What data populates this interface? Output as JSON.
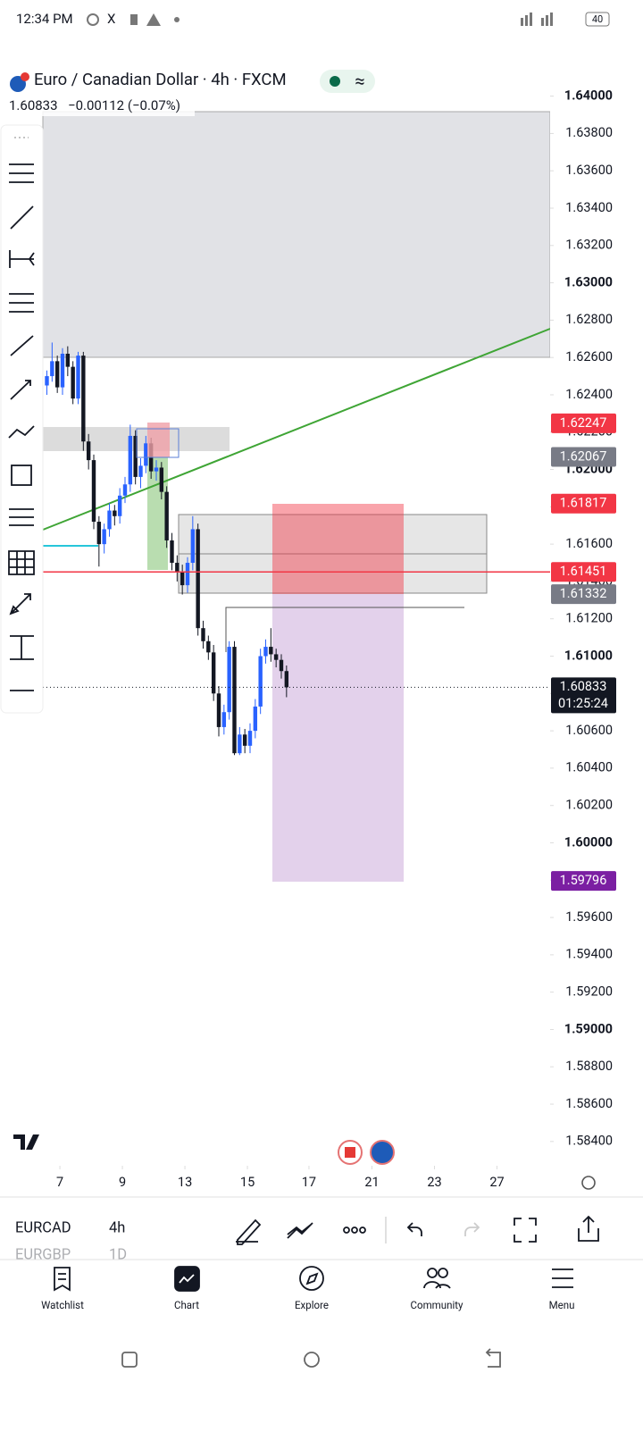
{
  "status_bar": {
    "time": "12:34 PM",
    "battery": "40"
  },
  "chart_data": {
    "type": "candlestick",
    "title": "Euro / Canadian Dollar · 4h · FXCM",
    "last": "1.60833",
    "change": "−0.00112 (−0.07%)",
    "up_color": "#2962ff",
    "down_color": "#131722",
    "x": [
      9,
      10,
      11,
      12,
      13,
      14,
      15,
      16,
      17,
      18,
      19,
      20,
      21,
      22,
      23,
      24,
      25,
      26,
      27,
      28,
      29,
      30,
      31,
      32,
      33,
      34,
      35,
      36,
      37,
      38,
      39,
      40,
      41,
      42,
      43,
      44,
      45,
      46,
      47,
      48,
      49,
      50,
      51,
      52,
      53,
      54,
      55
    ],
    "open": [
      1.6245,
      1.625,
      1.6258,
      1.6244,
      1.6262,
      1.6255,
      1.6238,
      1.6261,
      1.6215,
      1.6205,
      1.6172,
      1.616,
      1.6168,
      1.6178,
      1.6175,
      1.6186,
      1.6192,
      1.6218,
      1.6196,
      1.6202,
      1.6214,
      1.6199,
      1.6201,
      1.6188,
      1.6162,
      1.615,
      1.6145,
      1.6138,
      1.615,
      1.6168,
      1.6115,
      1.6108,
      1.6102,
      1.608,
      1.6062,
      1.607,
      1.6105,
      1.6048,
      1.6058,
      1.6052,
      1.606,
      1.6073,
      1.61,
      1.6105,
      1.6101,
      1.6098,
      1.6092
    ],
    "high": [
      1.6253,
      1.6268,
      1.6261,
      1.6265,
      1.6266,
      1.6258,
      1.6263,
      1.6263,
      1.6219,
      1.6208,
      1.6175,
      1.6171,
      1.6182,
      1.6181,
      1.619,
      1.6196,
      1.6224,
      1.6221,
      1.6206,
      1.6218,
      1.6217,
      1.6205,
      1.6204,
      1.6191,
      1.6166,
      1.6154,
      1.6149,
      1.6153,
      1.6175,
      1.6171,
      1.6119,
      1.6111,
      1.6106,
      1.6084,
      1.6074,
      1.6108,
      1.6108,
      1.6062,
      1.6061,
      1.6064,
      1.6077,
      1.6104,
      1.6109,
      1.6115,
      1.6104,
      1.6101,
      1.6095
    ],
    "low": [
      1.624,
      1.6247,
      1.6241,
      1.624,
      1.625,
      1.6235,
      1.6235,
      1.621,
      1.62,
      1.6168,
      1.6148,
      1.6155,
      1.6164,
      1.617,
      1.6171,
      1.6182,
      1.6188,
      1.6192,
      1.619,
      1.6198,
      1.6195,
      1.6194,
      1.6184,
      1.6158,
      1.6146,
      1.614,
      1.6133,
      1.6134,
      1.6146,
      1.6111,
      1.6104,
      1.6098,
      1.6076,
      1.6057,
      1.6058,
      1.6066,
      1.6047,
      1.6047,
      1.6048,
      1.6048,
      1.6056,
      1.6069,
      1.6096,
      1.6097,
      1.6094,
      1.6088,
      1.6078
    ],
    "close": [
      1.625,
      1.6258,
      1.6244,
      1.6262,
      1.6255,
      1.6238,
      1.6261,
      1.6215,
      1.6205,
      1.6172,
      1.616,
      1.6168,
      1.6178,
      1.6175,
      1.6186,
      1.6192,
      1.6218,
      1.6196,
      1.6202,
      1.6214,
      1.6199,
      1.6201,
      1.6188,
      1.6162,
      1.615,
      1.6145,
      1.6138,
      1.615,
      1.6168,
      1.6115,
      1.6108,
      1.6102,
      1.608,
      1.6062,
      1.607,
      1.6105,
      1.6048,
      1.6058,
      1.6052,
      1.606,
      1.6073,
      1.61,
      1.6105,
      1.6101,
      1.6098,
      1.6092,
      1.60833
    ],
    "xlim": [
      0,
      105.6
    ],
    "ylim": [
      1.5827,
      1.6418
    ],
    "xticks": [
      {
        "value": 11.5,
        "label": "7"
      },
      {
        "value": 23.5,
        "label": "9"
      },
      {
        "value": 35.5,
        "label": "13"
      },
      {
        "value": 47.5,
        "label": "15"
      },
      {
        "value": 59.3,
        "label": "17"
      },
      {
        "value": 71.4,
        "label": "21"
      },
      {
        "value": 83.4,
        "label": "23"
      },
      {
        "value": 95.4,
        "label": "27"
      }
    ],
    "yticks": [
      {
        "value": 1.64,
        "label": "1.64000"
      },
      {
        "value": 1.638,
        "label": "1.63800"
      },
      {
        "value": 1.636,
        "label": "1.63600"
      },
      {
        "value": 1.634,
        "label": "1.63400"
      },
      {
        "value": 1.632,
        "label": "1.63200"
      },
      {
        "value": 1.63,
        "label": "1.63000"
      },
      {
        "value": 1.628,
        "label": "1.62800"
      },
      {
        "value": 1.626,
        "label": "1.62600"
      },
      {
        "value": 1.624,
        "label": "1.62400"
      },
      {
        "value": 1.622,
        "label": "1.62200"
      },
      {
        "value": 1.62,
        "label": "1.62000"
      },
      {
        "value": 1.618,
        "label": "1.61800"
      },
      {
        "value": 1.616,
        "label": "1.61600"
      },
      {
        "value": 1.614,
        "label": "1.61400"
      },
      {
        "value": 1.612,
        "label": "1.61200"
      },
      {
        "value": 1.61,
        "label": "1.61000"
      },
      {
        "value": 1.608,
        "label": "1.60800"
      },
      {
        "value": 1.606,
        "label": "1.60600"
      },
      {
        "value": 1.604,
        "label": "1.60400"
      },
      {
        "value": 1.602,
        "label": "1.60200"
      },
      {
        "value": 1.6,
        "label": "1.60000"
      },
      {
        "value": 1.598,
        "label": "1.59800"
      },
      {
        "value": 1.596,
        "label": "1.59600"
      },
      {
        "value": 1.594,
        "label": "1.59400"
      },
      {
        "value": 1.592,
        "label": "1.59200"
      },
      {
        "value": 1.59,
        "label": "1.59000"
      },
      {
        "value": 1.588,
        "label": "1.58800"
      },
      {
        "value": 1.586,
        "label": "1.58600"
      },
      {
        "value": 1.584,
        "label": "1.58400"
      }
    ],
    "price_labels": [
      {
        "value": 1.62247,
        "color": "#f23645"
      },
      {
        "value": 1.62067,
        "color": "#787b86"
      },
      {
        "value": 1.61817,
        "color": "#f23645"
      },
      {
        "value": 1.61451,
        "color": "#f23645"
      },
      {
        "value": 1.61332,
        "color": "#787b86"
      },
      {
        "value": 1.60833,
        "color": "#131722",
        "countdown": "01:25:24"
      },
      {
        "value": 1.59796,
        "color": "#7b1fa2"
      }
    ]
  },
  "watchlist": {
    "rows": [
      [
        "EURCAD",
        "4h"
      ],
      [
        "EURGBP",
        "1D"
      ]
    ]
  },
  "nav": [
    "Watchlist",
    "Chart",
    "Explore",
    "Community",
    "Menu"
  ]
}
